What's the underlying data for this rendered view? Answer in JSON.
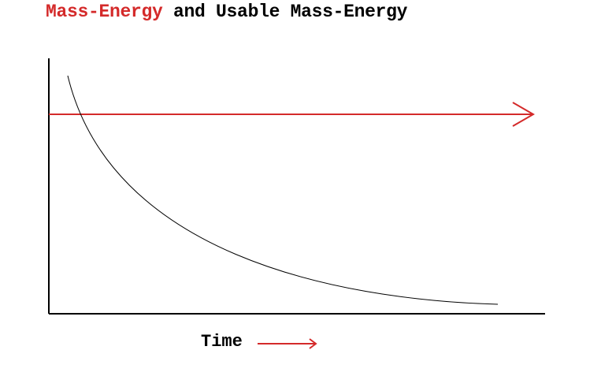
{
  "title": {
    "part1": "Mass-Energy",
    "part2": "and Usable Mass-Energy"
  },
  "xlabel": "Time",
  "colors": {
    "red": "#d42a2a",
    "black": "#000000",
    "background": "#ffffff"
  }
}
